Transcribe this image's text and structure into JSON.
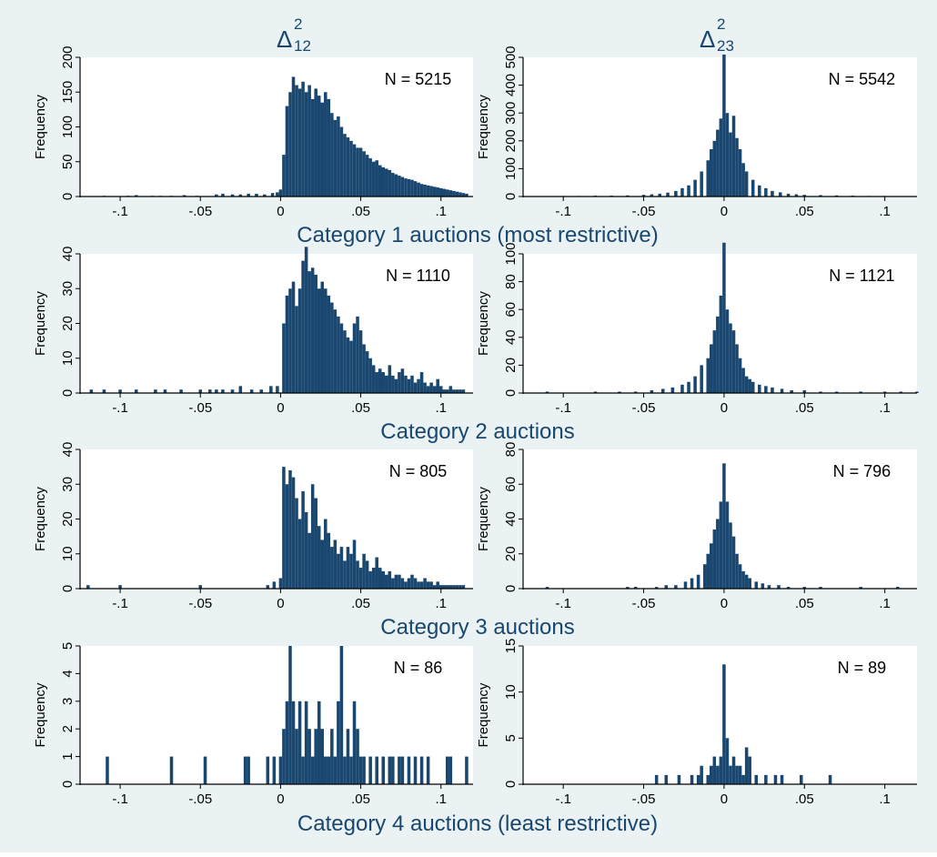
{
  "colors": {
    "outer_bg": "#eaf2f3",
    "plot_bg": "#ffffff",
    "bar": "#1a476f",
    "text": "#1a476f",
    "axis": "#000000"
  },
  "column_titles": [
    {
      "symbol": "Δ",
      "sup": "2",
      "sub": "12"
    },
    {
      "symbol": "Δ",
      "sup": "2",
      "sub": "23"
    }
  ],
  "row_titles": [
    "Category 1 auctions (most restrictive)",
    "Category 2 auctions",
    "Category 3 auctions",
    "Category 4 auctions (least restrictive)"
  ],
  "chart_data": [
    {
      "id": "r1c1",
      "type": "bar",
      "row": 1,
      "column": 1,
      "ylabel": "Frequency",
      "n_label": "N = 5215",
      "ylim": [
        0,
        200
      ],
      "yticks": [
        0,
        50,
        100,
        150,
        200
      ],
      "xlim": [
        -0.125,
        0.12
      ],
      "xticks": [
        -0.1,
        -0.05,
        0,
        0.05,
        0.1
      ],
      "xtick_labels": [
        "-.1",
        "-.05",
        "0",
        ".05",
        ".1"
      ],
      "x": [
        -0.11,
        -0.095,
        -0.09,
        -0.08,
        -0.075,
        -0.068,
        -0.06,
        -0.052,
        -0.04,
        -0.036,
        -0.03,
        -0.025,
        -0.02,
        -0.015,
        -0.01,
        -0.005,
        -0.002,
        0.0,
        0.002,
        0.004,
        0.006,
        0.008,
        0.01,
        0.012,
        0.014,
        0.016,
        0.018,
        0.02,
        0.022,
        0.024,
        0.026,
        0.028,
        0.03,
        0.032,
        0.034,
        0.036,
        0.038,
        0.04,
        0.042,
        0.044,
        0.046,
        0.048,
        0.05,
        0.052,
        0.054,
        0.056,
        0.058,
        0.06,
        0.062,
        0.064,
        0.066,
        0.068,
        0.07,
        0.072,
        0.074,
        0.076,
        0.078,
        0.08,
        0.082,
        0.084,
        0.086,
        0.088,
        0.09,
        0.092,
        0.094,
        0.096,
        0.098,
        0.1,
        0.102,
        0.104,
        0.106,
        0.108,
        0.11,
        0.112,
        0.114,
        0.116
      ],
      "values": [
        1,
        1,
        2,
        1,
        1,
        1,
        2,
        1,
        3,
        4,
        3,
        3,
        4,
        4,
        3,
        5,
        6,
        10,
        60,
        130,
        150,
        172,
        160,
        155,
        165,
        150,
        160,
        140,
        155,
        145,
        135,
        150,
        140,
        120,
        110,
        115,
        100,
        90,
        85,
        80,
        75,
        70,
        70,
        65,
        60,
        55,
        50,
        52,
        45,
        42,
        40,
        38,
        34,
        32,
        30,
        28,
        26,
        25,
        24,
        22,
        20,
        18,
        17,
        16,
        15,
        14,
        13,
        12,
        11,
        10,
        9,
        8,
        7,
        6,
        5,
        4
      ]
    },
    {
      "id": "r1c2",
      "type": "bar",
      "row": 1,
      "column": 2,
      "ylabel": "Frequency",
      "n_label": "N = 5542",
      "ylim": [
        0,
        500
      ],
      "yticks": [
        0,
        100,
        200,
        300,
        400,
        500
      ],
      "xlim": [
        -0.125,
        0.12
      ],
      "xticks": [
        -0.1,
        -0.05,
        0,
        0.05,
        0.1
      ],
      "xtick_labels": [
        "-.1",
        "-.05",
        "0",
        ".05",
        ".1"
      ],
      "x": [
        -0.12,
        -0.1,
        -0.09,
        -0.08,
        -0.07,
        -0.06,
        -0.05,
        -0.045,
        -0.04,
        -0.035,
        -0.03,
        -0.026,
        -0.022,
        -0.018,
        -0.014,
        -0.01,
        -0.008,
        -0.006,
        -0.004,
        -0.002,
        0.0,
        0.002,
        0.004,
        0.006,
        0.008,
        0.01,
        0.012,
        0.014,
        0.018,
        0.022,
        0.026,
        0.03,
        0.035,
        0.04,
        0.045,
        0.05,
        0.06,
        0.07,
        0.08,
        0.09,
        0.1,
        0.11
      ],
      "values": [
        1,
        2,
        2,
        3,
        3,
        4,
        6,
        8,
        10,
        14,
        20,
        30,
        40,
        60,
        90,
        130,
        170,
        200,
        240,
        280,
        510,
        300,
        230,
        290,
        210,
        170,
        120,
        90,
        60,
        40,
        30,
        20,
        15,
        10,
        8,
        6,
        5,
        4,
        3,
        2,
        2,
        1
      ]
    },
    {
      "id": "r2c1",
      "type": "bar",
      "row": 2,
      "column": 1,
      "ylabel": "Frequency",
      "n_label": "N = 1110",
      "ylim": [
        0,
        40
      ],
      "yticks": [
        0,
        10,
        20,
        30,
        40
      ],
      "xlim": [
        -0.125,
        0.12
      ],
      "xticks": [
        -0.1,
        -0.05,
        0,
        0.05,
        0.1
      ],
      "xtick_labels": [
        "-.1",
        "-.05",
        "0",
        ".05",
        ".1"
      ],
      "x": [
        -0.118,
        -0.11,
        -0.1,
        -0.09,
        -0.078,
        -0.072,
        -0.062,
        -0.05,
        -0.044,
        -0.04,
        -0.036,
        -0.03,
        -0.025,
        -0.018,
        -0.012,
        -0.006,
        -0.002,
        0.002,
        0.004,
        0.006,
        0.008,
        0.01,
        0.012,
        0.014,
        0.016,
        0.018,
        0.02,
        0.022,
        0.024,
        0.026,
        0.028,
        0.03,
        0.032,
        0.034,
        0.036,
        0.038,
        0.04,
        0.042,
        0.044,
        0.046,
        0.048,
        0.05,
        0.052,
        0.054,
        0.056,
        0.058,
        0.06,
        0.062,
        0.064,
        0.066,
        0.068,
        0.07,
        0.072,
        0.074,
        0.076,
        0.078,
        0.08,
        0.082,
        0.084,
        0.086,
        0.088,
        0.09,
        0.092,
        0.094,
        0.096,
        0.098,
        0.1,
        0.102,
        0.104,
        0.106,
        0.108,
        0.11,
        0.112,
        0.114
      ],
      "values": [
        1,
        1,
        1,
        1,
        1,
        1,
        1,
        1,
        1,
        1,
        1,
        1,
        2,
        1,
        1,
        2,
        2,
        20,
        28,
        30,
        32,
        25,
        30,
        38,
        42,
        35,
        36,
        34,
        30,
        32,
        30,
        28,
        26,
        24,
        22,
        20,
        18,
        16,
        15,
        20,
        22,
        18,
        14,
        12,
        10,
        8,
        6,
        7,
        6,
        5,
        8,
        5,
        4,
        6,
        7,
        5,
        4,
        5,
        3,
        4,
        6,
        3,
        2,
        3,
        2,
        4,
        2,
        1,
        1,
        2,
        1,
        1,
        1,
        1
      ]
    },
    {
      "id": "r2c2",
      "type": "bar",
      "row": 2,
      "column": 2,
      "ylabel": "Frequency",
      "n_label": "N = 1121",
      "ylim": [
        0,
        100
      ],
      "yticks": [
        0,
        20,
        40,
        60,
        80,
        100
      ],
      "xlim": [
        -0.125,
        0.12
      ],
      "xticks": [
        -0.1,
        -0.05,
        0,
        0.05,
        0.1
      ],
      "xtick_labels": [
        "-.1",
        "-.05",
        "0",
        ".05",
        ".1"
      ],
      "x": [
        -0.11,
        -0.08,
        -0.065,
        -0.055,
        -0.045,
        -0.038,
        -0.032,
        -0.026,
        -0.022,
        -0.018,
        -0.014,
        -0.01,
        -0.008,
        -0.006,
        -0.004,
        -0.002,
        0.0,
        0.002,
        0.004,
        0.006,
        0.008,
        0.01,
        0.012,
        0.014,
        0.016,
        0.018,
        0.022,
        0.026,
        0.03,
        0.036,
        0.042,
        0.05,
        0.06,
        0.07,
        0.085,
        0.1,
        0.11,
        0.12
      ],
      "values": [
        1,
        1,
        1,
        1,
        2,
        3,
        4,
        6,
        8,
        12,
        20,
        25,
        35,
        45,
        55,
        70,
        108,
        60,
        50,
        45,
        35,
        25,
        18,
        12,
        10,
        8,
        6,
        5,
        4,
        3,
        2,
        2,
        1,
        1,
        1,
        1,
        1,
        1
      ]
    },
    {
      "id": "r3c1",
      "type": "bar",
      "row": 3,
      "column": 1,
      "ylabel": "Frequency",
      "n_label": "N = 805",
      "ylim": [
        0,
        40
      ],
      "yticks": [
        0,
        10,
        20,
        30,
        40
      ],
      "xlim": [
        -0.125,
        0.12
      ],
      "xticks": [
        -0.1,
        -0.05,
        0,
        0.05,
        0.1
      ],
      "xtick_labels": [
        "-.1",
        "-.05",
        "0",
        ".05",
        ".1"
      ],
      "x": [
        -0.12,
        -0.1,
        -0.05,
        -0.008,
        -0.004,
        0.0,
        0.002,
        0.004,
        0.006,
        0.008,
        0.01,
        0.012,
        0.014,
        0.016,
        0.018,
        0.02,
        0.022,
        0.024,
        0.026,
        0.028,
        0.03,
        0.032,
        0.034,
        0.036,
        0.038,
        0.04,
        0.042,
        0.044,
        0.046,
        0.048,
        0.05,
        0.052,
        0.054,
        0.056,
        0.058,
        0.06,
        0.062,
        0.064,
        0.066,
        0.068,
        0.07,
        0.072,
        0.074,
        0.076,
        0.078,
        0.08,
        0.082,
        0.084,
        0.086,
        0.088,
        0.09,
        0.092,
        0.094,
        0.096,
        0.098,
        0.1,
        0.102,
        0.104,
        0.106,
        0.108,
        0.11,
        0.112,
        0.114
      ],
      "values": [
        1,
        1,
        1,
        1,
        2,
        3,
        35,
        30,
        34,
        32,
        26,
        20,
        28,
        22,
        16,
        30,
        26,
        18,
        14,
        20,
        16,
        12,
        14,
        10,
        12,
        8,
        12,
        10,
        14,
        8,
        6,
        10,
        8,
        5,
        6,
        9,
        6,
        5,
        4,
        5,
        3,
        4,
        4,
        3,
        2,
        3,
        4,
        3,
        2,
        2,
        3,
        2,
        2,
        1,
        2,
        1,
        1,
        1,
        1,
        1,
        1,
        1,
        1
      ]
    },
    {
      "id": "r3c2",
      "type": "bar",
      "row": 3,
      "column": 2,
      "ylabel": "Frequency",
      "n_label": "N = 796",
      "ylim": [
        0,
        80
      ],
      "yticks": [
        0,
        20,
        40,
        60,
        80
      ],
      "xlim": [
        -0.125,
        0.12
      ],
      "xticks": [
        -0.1,
        -0.05,
        0,
        0.05,
        0.1
      ],
      "xtick_labels": [
        "-.1",
        "-.05",
        "0",
        ".05",
        ".1"
      ],
      "x": [
        -0.11,
        -0.06,
        -0.055,
        -0.042,
        -0.036,
        -0.03,
        -0.024,
        -0.02,
        -0.016,
        -0.012,
        -0.01,
        -0.008,
        -0.006,
        -0.004,
        -0.002,
        0.0,
        0.002,
        0.004,
        0.006,
        0.008,
        0.01,
        0.012,
        0.014,
        0.016,
        0.02,
        0.024,
        0.028,
        0.034,
        0.04,
        0.05,
        0.06,
        0.085,
        0.108
      ],
      "values": [
        1,
        1,
        1,
        1,
        2,
        2,
        4,
        6,
        8,
        14,
        20,
        26,
        34,
        40,
        50,
        72,
        50,
        38,
        30,
        20,
        14,
        10,
        8,
        6,
        4,
        3,
        2,
        2,
        1,
        1,
        1,
        1,
        1
      ]
    },
    {
      "id": "r4c1",
      "type": "bar",
      "row": 4,
      "column": 1,
      "ylabel": "Frequency",
      "n_label": "N = 86",
      "ylim": [
        0,
        5
      ],
      "yticks": [
        0,
        1,
        2,
        3,
        4,
        5
      ],
      "xlim": [
        -0.125,
        0.12
      ],
      "xticks": [
        -0.1,
        -0.05,
        0,
        0.05,
        0.1
      ],
      "xtick_labels": [
        "-.1",
        "-.05",
        "0",
        ".05",
        ".1"
      ],
      "x": [
        -0.108,
        -0.068,
        -0.047,
        -0.022,
        -0.02,
        -0.008,
        -0.004,
        0.0,
        0.002,
        0.004,
        0.006,
        0.008,
        0.01,
        0.012,
        0.014,
        0.016,
        0.018,
        0.02,
        0.022,
        0.024,
        0.026,
        0.028,
        0.03,
        0.032,
        0.034,
        0.036,
        0.038,
        0.04,
        0.042,
        0.044,
        0.046,
        0.048,
        0.05,
        0.052,
        0.056,
        0.06,
        0.064,
        0.068,
        0.07,
        0.074,
        0.076,
        0.08,
        0.084,
        0.088,
        0.092,
        0.104,
        0.106,
        0.116
      ],
      "values": [
        1,
        1,
        1,
        1,
        1,
        1,
        1,
        1,
        2,
        3,
        5,
        3,
        2,
        3,
        1,
        3,
        2,
        1,
        2,
        3,
        2,
        1,
        1,
        2,
        1,
        3,
        5,
        1,
        2,
        1,
        3,
        2,
        1,
        1,
        1,
        1,
        1,
        1,
        1,
        1,
        1,
        1,
        1,
        1,
        1,
        1,
        1,
        1
      ]
    },
    {
      "id": "r4c2",
      "type": "bar",
      "row": 4,
      "column": 2,
      "ylabel": "Frequency",
      "n_label": "N = 89",
      "ylim": [
        0,
        15
      ],
      "yticks": [
        0,
        5,
        10,
        15
      ],
      "xlim": [
        -0.125,
        0.12
      ],
      "xticks": [
        -0.1,
        -0.05,
        0,
        0.05,
        0.1
      ],
      "xtick_labels": [
        "-.1",
        "-.05",
        "0",
        ".05",
        ".1"
      ],
      "x": [
        -0.042,
        -0.036,
        -0.028,
        -0.02,
        -0.016,
        -0.014,
        -0.01,
        -0.008,
        -0.006,
        -0.004,
        -0.002,
        0.0,
        0.002,
        0.004,
        0.006,
        0.008,
        0.01,
        0.012,
        0.014,
        0.016,
        0.02,
        0.026,
        0.032,
        0.036,
        0.048,
        0.066
      ],
      "values": [
        1,
        1,
        1,
        1,
        1,
        2,
        1,
        2,
        3,
        2,
        3,
        13,
        5,
        2,
        3,
        2,
        2,
        1,
        4,
        3,
        1,
        1,
        1,
        1,
        1,
        1
      ]
    }
  ]
}
